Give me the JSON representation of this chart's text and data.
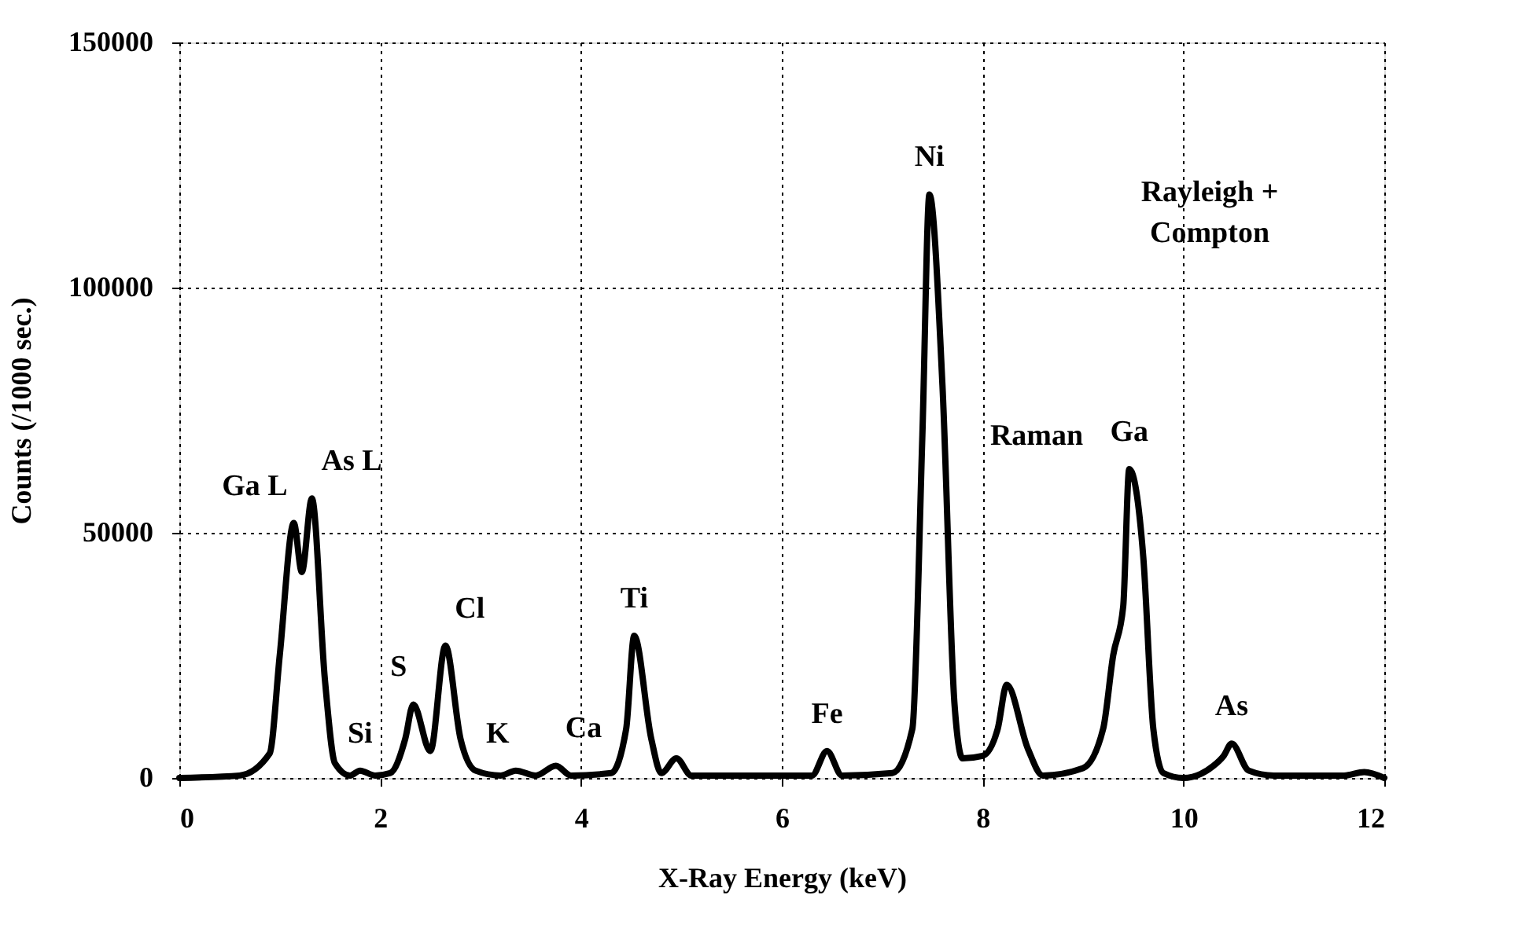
{
  "chart_data": {
    "type": "line",
    "xlabel": "X-Ray Energy (keV)",
    "ylabel": "Counts (/1000 sec.)",
    "x": [
      0,
      0.6,
      0.9,
      1.0,
      1.14,
      1.22,
      1.32,
      1.45,
      1.55,
      1.7,
      1.8,
      1.95,
      2.1,
      2.25,
      2.33,
      2.5,
      2.65,
      2.8,
      2.95,
      3.2,
      3.35,
      3.55,
      3.75,
      3.9,
      4.3,
      4.45,
      4.53,
      4.7,
      4.8,
      4.95,
      5.1,
      6.3,
      6.45,
      6.6,
      7.1,
      7.3,
      7.4,
      7.47,
      7.6,
      7.72,
      7.8,
      8.0,
      8.15,
      8.24,
      8.45,
      8.6,
      9.0,
      9.2,
      9.3,
      9.4,
      9.46,
      9.6,
      9.7,
      9.8,
      10.0,
      10.3,
      10.4,
      10.48,
      10.65,
      10.9,
      11.6,
      11.8,
      12
    ],
    "series": [
      {
        "color": "#000000",
        "values": [
          0,
          500,
          5000,
          25000,
          52000,
          42000,
          57000,
          20000,
          3000,
          500,
          1500,
          500,
          1000,
          8000,
          15000,
          5500,
          27000,
          8000,
          1500,
          500,
          1500,
          500,
          2500,
          500,
          1000,
          10000,
          29000,
          8000,
          1000,
          4000,
          500,
          500,
          5500,
          500,
          1000,
          10000,
          70000,
          119000,
          80000,
          15000,
          4000,
          4500,
          10000,
          19000,
          6000,
          500,
          2000,
          10000,
          25000,
          35000,
          63000,
          45000,
          10000,
          1000,
          0,
          2500,
          4500,
          7000,
          1500,
          500,
          500,
          1200,
          0
        ]
      }
    ],
    "xlim": [
      0,
      12
    ],
    "xticks": [
      0,
      2,
      4,
      6,
      8,
      10,
      12
    ],
    "ylim": [
      0,
      150000
    ],
    "yticks": [
      0,
      50000,
      100000,
      150000
    ],
    "grid": true,
    "line_style": "solid",
    "annotations": [
      {
        "text": "Ga L",
        "x": 1.14,
        "y": 52000
      },
      {
        "text": "As L",
        "x": 1.32,
        "y": 57000
      },
      {
        "text": "Si",
        "x": 1.8,
        "y": 1500
      },
      {
        "text": "S",
        "x": 2.33,
        "y": 15000
      },
      {
        "text": "Cl",
        "x": 2.65,
        "y": 27000
      },
      {
        "text": "K",
        "x": 3.35,
        "y": 1500
      },
      {
        "text": "Ca",
        "x": 3.75,
        "y": 2500
      },
      {
        "text": "Ti",
        "x": 4.53,
        "y": 29000
      },
      {
        "text": "Fe",
        "x": 6.45,
        "y": 5500
      },
      {
        "text": "Ni",
        "x": 7.47,
        "y": 119000
      },
      "Raman",
      "Rayleigh +\nCompton",
      {
        "text": "Ga",
        "x": 9.46,
        "y": 63000
      },
      {
        "text": "As",
        "x": 10.48,
        "y": 7000
      }
    ]
  }
}
